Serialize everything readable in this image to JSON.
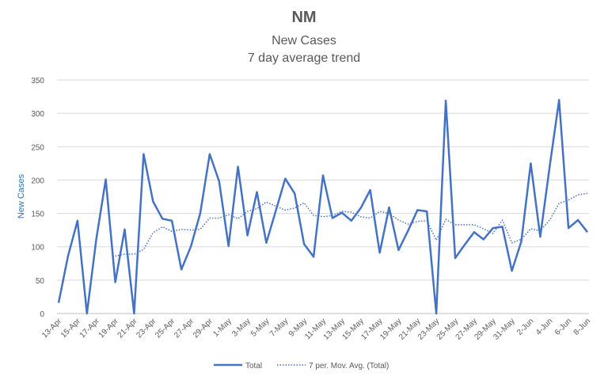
{
  "chart_data": {
    "type": "line",
    "title": "NM",
    "subtitle_line1": "New Cases",
    "subtitle_line2": "7 day average trend",
    "xlabel": "",
    "ylabel": "New Cases",
    "ylim": [
      0,
      350
    ],
    "yticks": [
      0,
      50,
      100,
      150,
      200,
      250,
      300,
      350
    ],
    "grid": true,
    "legend": "bottom",
    "series_color": "#4472c4",
    "x": [
      "13-Apr",
      "14-Apr",
      "15-Apr",
      "16-Apr",
      "17-Apr",
      "18-Apr",
      "19-Apr",
      "20-Apr",
      "21-Apr",
      "22-Apr",
      "23-Apr",
      "24-Apr",
      "25-Apr",
      "26-Apr",
      "27-Apr",
      "28-Apr",
      "29-Apr",
      "30-Apr",
      "1-May",
      "2-May",
      "3-May",
      "4-May",
      "5-May",
      "6-May",
      "7-May",
      "8-May",
      "9-May",
      "10-May",
      "11-May",
      "12-May",
      "13-May",
      "14-May",
      "15-May",
      "16-May",
      "17-May",
      "18-May",
      "19-May",
      "20-May",
      "21-May",
      "22-May",
      "23-May",
      "24-May",
      "25-May",
      "26-May",
      "27-May",
      "28-May",
      "29-May",
      "30-May",
      "31-May",
      "1-Jun",
      "2-Jun",
      "3-Jun",
      "4-Jun",
      "5-Jun",
      "6-Jun",
      "7-Jun",
      "8-Jun"
    ],
    "tick_labels": [
      "13-Apr",
      "15-Apr",
      "17-Apr",
      "19-Apr",
      "21-Apr",
      "23-Apr",
      "25-Apr",
      "27-Apr",
      "29-Apr",
      "1-May",
      "3-May",
      "5-May",
      "7-May",
      "9-May",
      "11-May",
      "13-May",
      "15-May",
      "17-May",
      "19-May",
      "21-May",
      "23-May",
      "25-May",
      "27-May",
      "29-May",
      "31-May",
      "2-Jun",
      "4-Jun",
      "6-Jun",
      "8-Jun"
    ],
    "series": [
      {
        "name": "Total",
        "style": "solid",
        "values": [
          16,
          86,
          139,
          0,
          112,
          201,
          47,
          126,
          0,
          239,
          168,
          142,
          139,
          66,
          100,
          150,
          239,
          198,
          101,
          220,
          117,
          182,
          106,
          154,
          202,
          180,
          104,
          85,
          207,
          143,
          151,
          139,
          158,
          185,
          91,
          159,
          95,
          124,
          155,
          153,
          0,
          319,
          83,
          103,
          122,
          111,
          128,
          130,
          64,
          108,
          225,
          115,
          220,
          320,
          128,
          140,
          122
        ]
      },
      {
        "name": "7 per. Mov. Avg. (Total)",
        "style": "dotted",
        "values": [
          null,
          null,
          null,
          null,
          null,
          null,
          86,
          89,
          89,
          96,
          121,
          130,
          123,
          126,
          125,
          126,
          143,
          143,
          148,
          142,
          153,
          157,
          167,
          161,
          155,
          158,
          166,
          147,
          145,
          147,
          153,
          152,
          145,
          143,
          153,
          150,
          140,
          134,
          138,
          139,
          110,
          141,
          133,
          133,
          133,
          127,
          120,
          140,
          106,
          111,
          127,
          124,
          140,
          165,
          170,
          178,
          180
        ]
      }
    ]
  }
}
